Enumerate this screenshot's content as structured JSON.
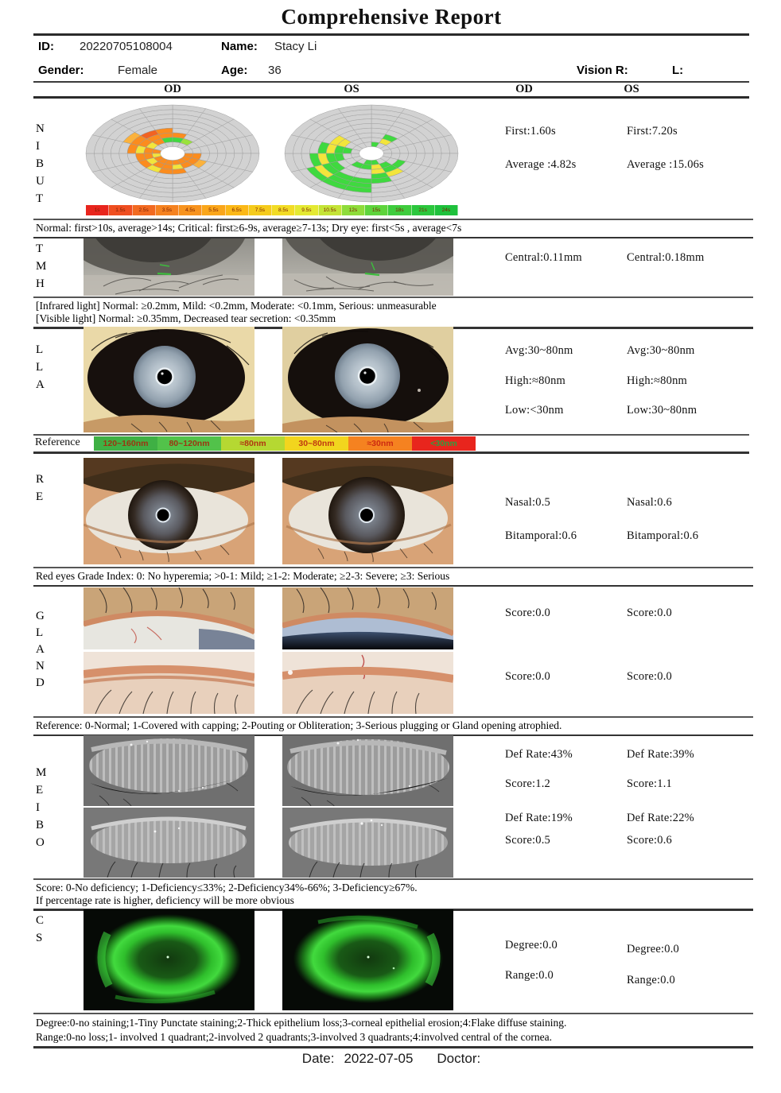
{
  "title": "Comprehensive Report",
  "header": {
    "id_label": "ID:",
    "id_value": "20220705108004",
    "name_label": "Name:",
    "name_value": "Stacy Li",
    "gender_label": "Gender:",
    "gender_value": "Female",
    "age_label": "Age:",
    "age_value": "36",
    "vision_r_label": "Vision R:",
    "vision_l_label": "L:",
    "col_od_img": "OD",
    "col_os_img": "OS",
    "col_od_val": "OD",
    "col_os_val": "OS"
  },
  "nibut": {
    "code": "N\nI\nB\nU\nT",
    "od": {
      "first": "First:1.60s",
      "average": "Average :4.82s"
    },
    "os": {
      "first": "First:7.20s",
      "average": "Average :15.06s"
    },
    "reference": "Normal: first>10s, average>14s; Critical: first≥6-9s, average≥7-13s; Dry eye: first<5s , average<7s"
  },
  "chart_data": {
    "type": "heatmap",
    "description": "NIBUT polar break-up maps, 9 rings x 16 sectors, colored by break-up time (s)",
    "rings": 9,
    "sectors": 16,
    "grid_color": "#d2d2d2",
    "grid_stroke": "#a2a2a2",
    "cell_colors": {
      "o": "#fb8c1e",
      "do": "#f26322",
      "lo": "#fbb23c",
      "y": "#f3e53b",
      "g": "#3fd93f",
      "lg": "#9ae23c"
    },
    "scale": {
      "labels": [
        "1s",
        "1.5s",
        "2.5s",
        "3.5s",
        "4.5s",
        "5.5s",
        "6.5s",
        "7.5s",
        "8.5s",
        "9.5s",
        "10.5s",
        "12s",
        "15s",
        "18s",
        "21s",
        "24s"
      ],
      "colors": [
        "#e8251d",
        "#ef4e20",
        "#f26a21",
        "#f58220",
        "#f7931e",
        "#faa61a",
        "#fbb817",
        "#f5cb1c",
        "#f2dc25",
        "#e4e932",
        "#c4e436",
        "#8edc3a",
        "#5ed43c",
        "#3ecc3d",
        "#2bc73d",
        "#1ec13c"
      ]
    },
    "od_cells": [
      [
        2,
        15,
        "g"
      ],
      [
        3,
        15,
        "o"
      ],
      [
        4,
        15,
        "o"
      ],
      [
        2,
        14,
        "o"
      ],
      [
        3,
        14,
        "o"
      ],
      [
        4,
        14,
        "do"
      ],
      [
        2,
        13,
        "y"
      ],
      [
        3,
        13,
        "o"
      ],
      [
        4,
        13,
        "o"
      ],
      [
        5,
        13,
        "lo"
      ],
      [
        1,
        12,
        "o"
      ],
      [
        2,
        12,
        "o"
      ],
      [
        3,
        12,
        "y"
      ],
      [
        4,
        12,
        "o"
      ],
      [
        1,
        11,
        "y"
      ],
      [
        2,
        11,
        "o"
      ],
      [
        3,
        11,
        "o"
      ],
      [
        1,
        10,
        "o"
      ],
      [
        2,
        10,
        "y"
      ],
      [
        3,
        10,
        "o"
      ],
      [
        1,
        9,
        "o"
      ],
      [
        2,
        9,
        "o"
      ],
      [
        3,
        9,
        "y"
      ],
      [
        1,
        8,
        "o"
      ],
      [
        2,
        8,
        "o"
      ],
      [
        3,
        8,
        "o"
      ],
      [
        1,
        7,
        "o"
      ],
      [
        2,
        7,
        "y"
      ],
      [
        3,
        7,
        "o"
      ],
      [
        1,
        6,
        "o"
      ],
      [
        2,
        6,
        "o"
      ],
      [
        1,
        5,
        "o"
      ],
      [
        2,
        5,
        "o"
      ],
      [
        3,
        5,
        "lo"
      ],
      [
        1,
        4,
        "o"
      ],
      [
        2,
        4,
        "o"
      ],
      [
        2,
        0,
        "g"
      ],
      [
        3,
        0,
        "o"
      ],
      [
        2,
        1,
        "lg"
      ]
    ],
    "os_cells": [
      [
        3,
        13,
        "y"
      ],
      [
        4,
        13,
        "y"
      ],
      [
        2,
        12,
        "g"
      ],
      [
        3,
        12,
        "g"
      ],
      [
        4,
        12,
        "y"
      ],
      [
        5,
        12,
        "g"
      ],
      [
        3,
        11,
        "g"
      ],
      [
        4,
        11,
        "g"
      ],
      [
        5,
        11,
        "y"
      ],
      [
        6,
        11,
        "g"
      ],
      [
        4,
        10,
        "g"
      ],
      [
        5,
        10,
        "g"
      ],
      [
        6,
        10,
        "y"
      ],
      [
        7,
        10,
        "g"
      ],
      [
        2,
        9,
        "g"
      ],
      [
        5,
        9,
        "g"
      ],
      [
        6,
        9,
        "g"
      ],
      [
        7,
        9,
        "g"
      ],
      [
        1,
        8,
        "g"
      ],
      [
        2,
        8,
        "g"
      ],
      [
        5,
        8,
        "g"
      ],
      [
        6,
        8,
        "g"
      ],
      [
        7,
        8,
        "g"
      ],
      [
        1,
        7,
        "g"
      ],
      [
        2,
        7,
        "y"
      ],
      [
        3,
        7,
        "y"
      ],
      [
        4,
        7,
        "g"
      ],
      [
        5,
        7,
        "g"
      ],
      [
        2,
        6,
        "g"
      ],
      [
        3,
        6,
        "g"
      ],
      [
        4,
        6,
        "y"
      ],
      [
        3,
        5,
        "g"
      ],
      [
        2,
        1,
        "y"
      ],
      [
        3,
        1,
        "g"
      ],
      [
        1,
        0,
        "g"
      ]
    ]
  },
  "tmh": {
    "code": "T\nM\nH",
    "od": {
      "central": "Central:0.11mm"
    },
    "os": {
      "central": "Central:0.18mm"
    },
    "reference1": "[Infrared light] Normal: ≥0.2mm, Mild: <0.2mm, Moderate: <0.1mm, Serious: unmeasurable",
    "reference2": "[Visible light] Normal: ≥0.35mm, Decreased tear secretion: <0.35mm"
  },
  "lla": {
    "code": "L\nL\nA",
    "od": {
      "avg": "Avg:30~80nm",
      "high": "High:≈80nm",
      "low": "Low:<30nm"
    },
    "os": {
      "avg": "Avg:30~80nm",
      "high": "High:≈80nm",
      "low": "Low:30~80nm"
    },
    "bar": {
      "label": "Reference",
      "segments": [
        {
          "text": "120~160nm",
          "color": "#3fb044",
          "text_color": "#9c3511"
        },
        {
          "text": "80~120nm",
          "color": "#52c24a",
          "text_color": "#9c3511"
        },
        {
          "text": "≈80nm",
          "color": "#b5d832",
          "text_color": "#b03511"
        },
        {
          "text": "30~80nm",
          "color": "#f2d51e",
          "text_color": "#c03a11"
        },
        {
          "text": "≈30nm",
          "color": "#f58220",
          "text_color": "#cc2a11"
        },
        {
          "text": "<30nm",
          "color": "#e8251d",
          "text_color": "#2f9e3f"
        }
      ]
    }
  },
  "re": {
    "code": "R\nE",
    "od": {
      "nasal": "Nasal:0.5",
      "bitamporal": "Bitamporal:0.6"
    },
    "os": {
      "nasal": "Nasal:0.6",
      "bitamporal": "Bitamporal:0.6"
    },
    "reference": "Red eyes Grade Index:  0: No hyperemia; >0-1: Mild; ≥1-2: Moderate; ≥2-3: Severe; ≥3: Serious"
  },
  "gland": {
    "code": "G\nL\nA\nN\nD",
    "od": {
      "score_upper": "Score:0.0",
      "score_lower": "Score:0.0"
    },
    "os": {
      "score_upper": "Score:0.0",
      "score_lower": "Score:0.0"
    },
    "reference": "Reference: 0-Normal;  1-Covered with capping;  2-Pouting or Obliteration;  3-Serious plugging or Gland opening atrophied."
  },
  "meibo": {
    "code": "M\nE\nI\nB\nO",
    "od": {
      "def_upper": "Def Rate:43%",
      "score_upper": "Score:1.2",
      "def_lower": "Def Rate:19%",
      "score_lower": "Score:0.5"
    },
    "os": {
      "def_upper": "Def Rate:39%",
      "score_upper": "Score:1.1",
      "def_lower": "Def Rate:22%",
      "score_lower": "Score:0.6"
    },
    "reference1": "Score: 0-No deficiency;  1-Deficiency≤33%;  2-Deficiency34%-66%;  3-Deficiency≥67%.",
    "reference2": "If percentage rate is higher, deficiency will be more obvious"
  },
  "cs": {
    "code": "C\nS",
    "od": {
      "degree": "Degree:0.0",
      "range": "Range:0.0"
    },
    "os": {
      "degree": "Degree:0.0",
      "range": "Range:0.0"
    },
    "reference1": "Degree:0-no staining;1-Tiny Punctate staining;2-Thick epithelium loss;3-corneal epithelial erosion;4:Flake diffuse staining.",
    "reference2": "Range:0-no loss;1- involved 1 quadrant;2-involved 2 quadrants;3-involved 3 quadrants;4:involved central of the cornea."
  },
  "footer": {
    "date_label": "Date:",
    "date_value": "2022-07-05",
    "doctor_label": "Doctor:"
  }
}
